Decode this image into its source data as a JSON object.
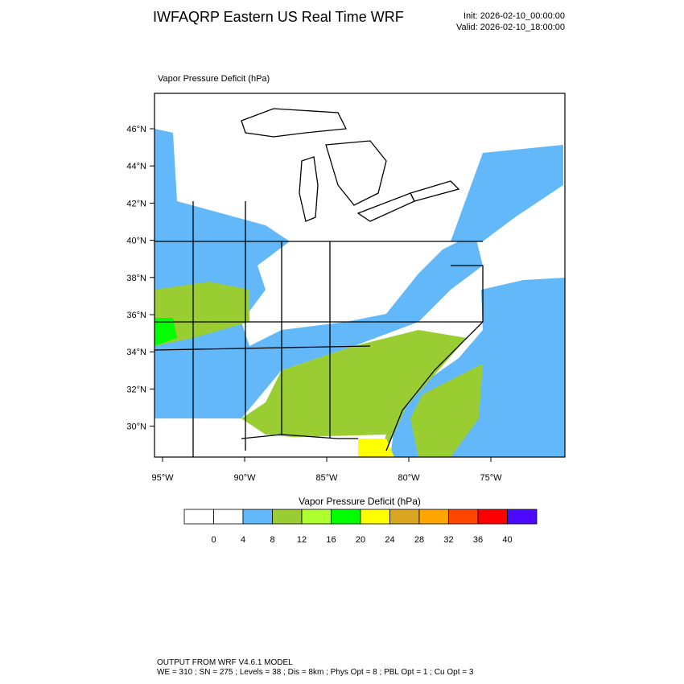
{
  "header": {
    "title": "IWFAQRP Eastern US Real Time WRF",
    "init": "Init: 2026-02-10_00:00:00",
    "valid": "Valid: 2026-02-10_18:00:00"
  },
  "plot": {
    "title": "Vapor Pressure Deficit   (hPa)",
    "lat_labels": [
      "46°N",
      "44°N",
      "42°N",
      "40°N",
      "38°N",
      "36°N",
      "34°N",
      "32°N",
      "30°N"
    ],
    "lon_labels": [
      "95°W",
      "90°W",
      "85°W",
      "80°W",
      "75°W"
    ]
  },
  "colorbar": {
    "title": "Vapor Pressure Deficit   (hPa)",
    "colors": [
      "#ffffff",
      "#ffffff",
      "#63b8fa",
      "#9acd32",
      "#adff2f",
      "#00ff00",
      "#ffff00",
      "#daa520",
      "#ffa500",
      "#ff4500",
      "#ff0000",
      "#4b0aff"
    ],
    "labels": [
      0,
      4,
      8,
      12,
      16,
      20,
      24,
      28,
      32,
      36,
      40
    ]
  },
  "footer": {
    "line1": "OUTPUT FROM WRF V4.6.1 MODEL",
    "line2": "WE = 310 ; SN = 275 ; Levels = 38 ; Dis = 8km ; Phys Opt = 8 ; PBL Opt = 1 ; Cu Opt = 3"
  }
}
